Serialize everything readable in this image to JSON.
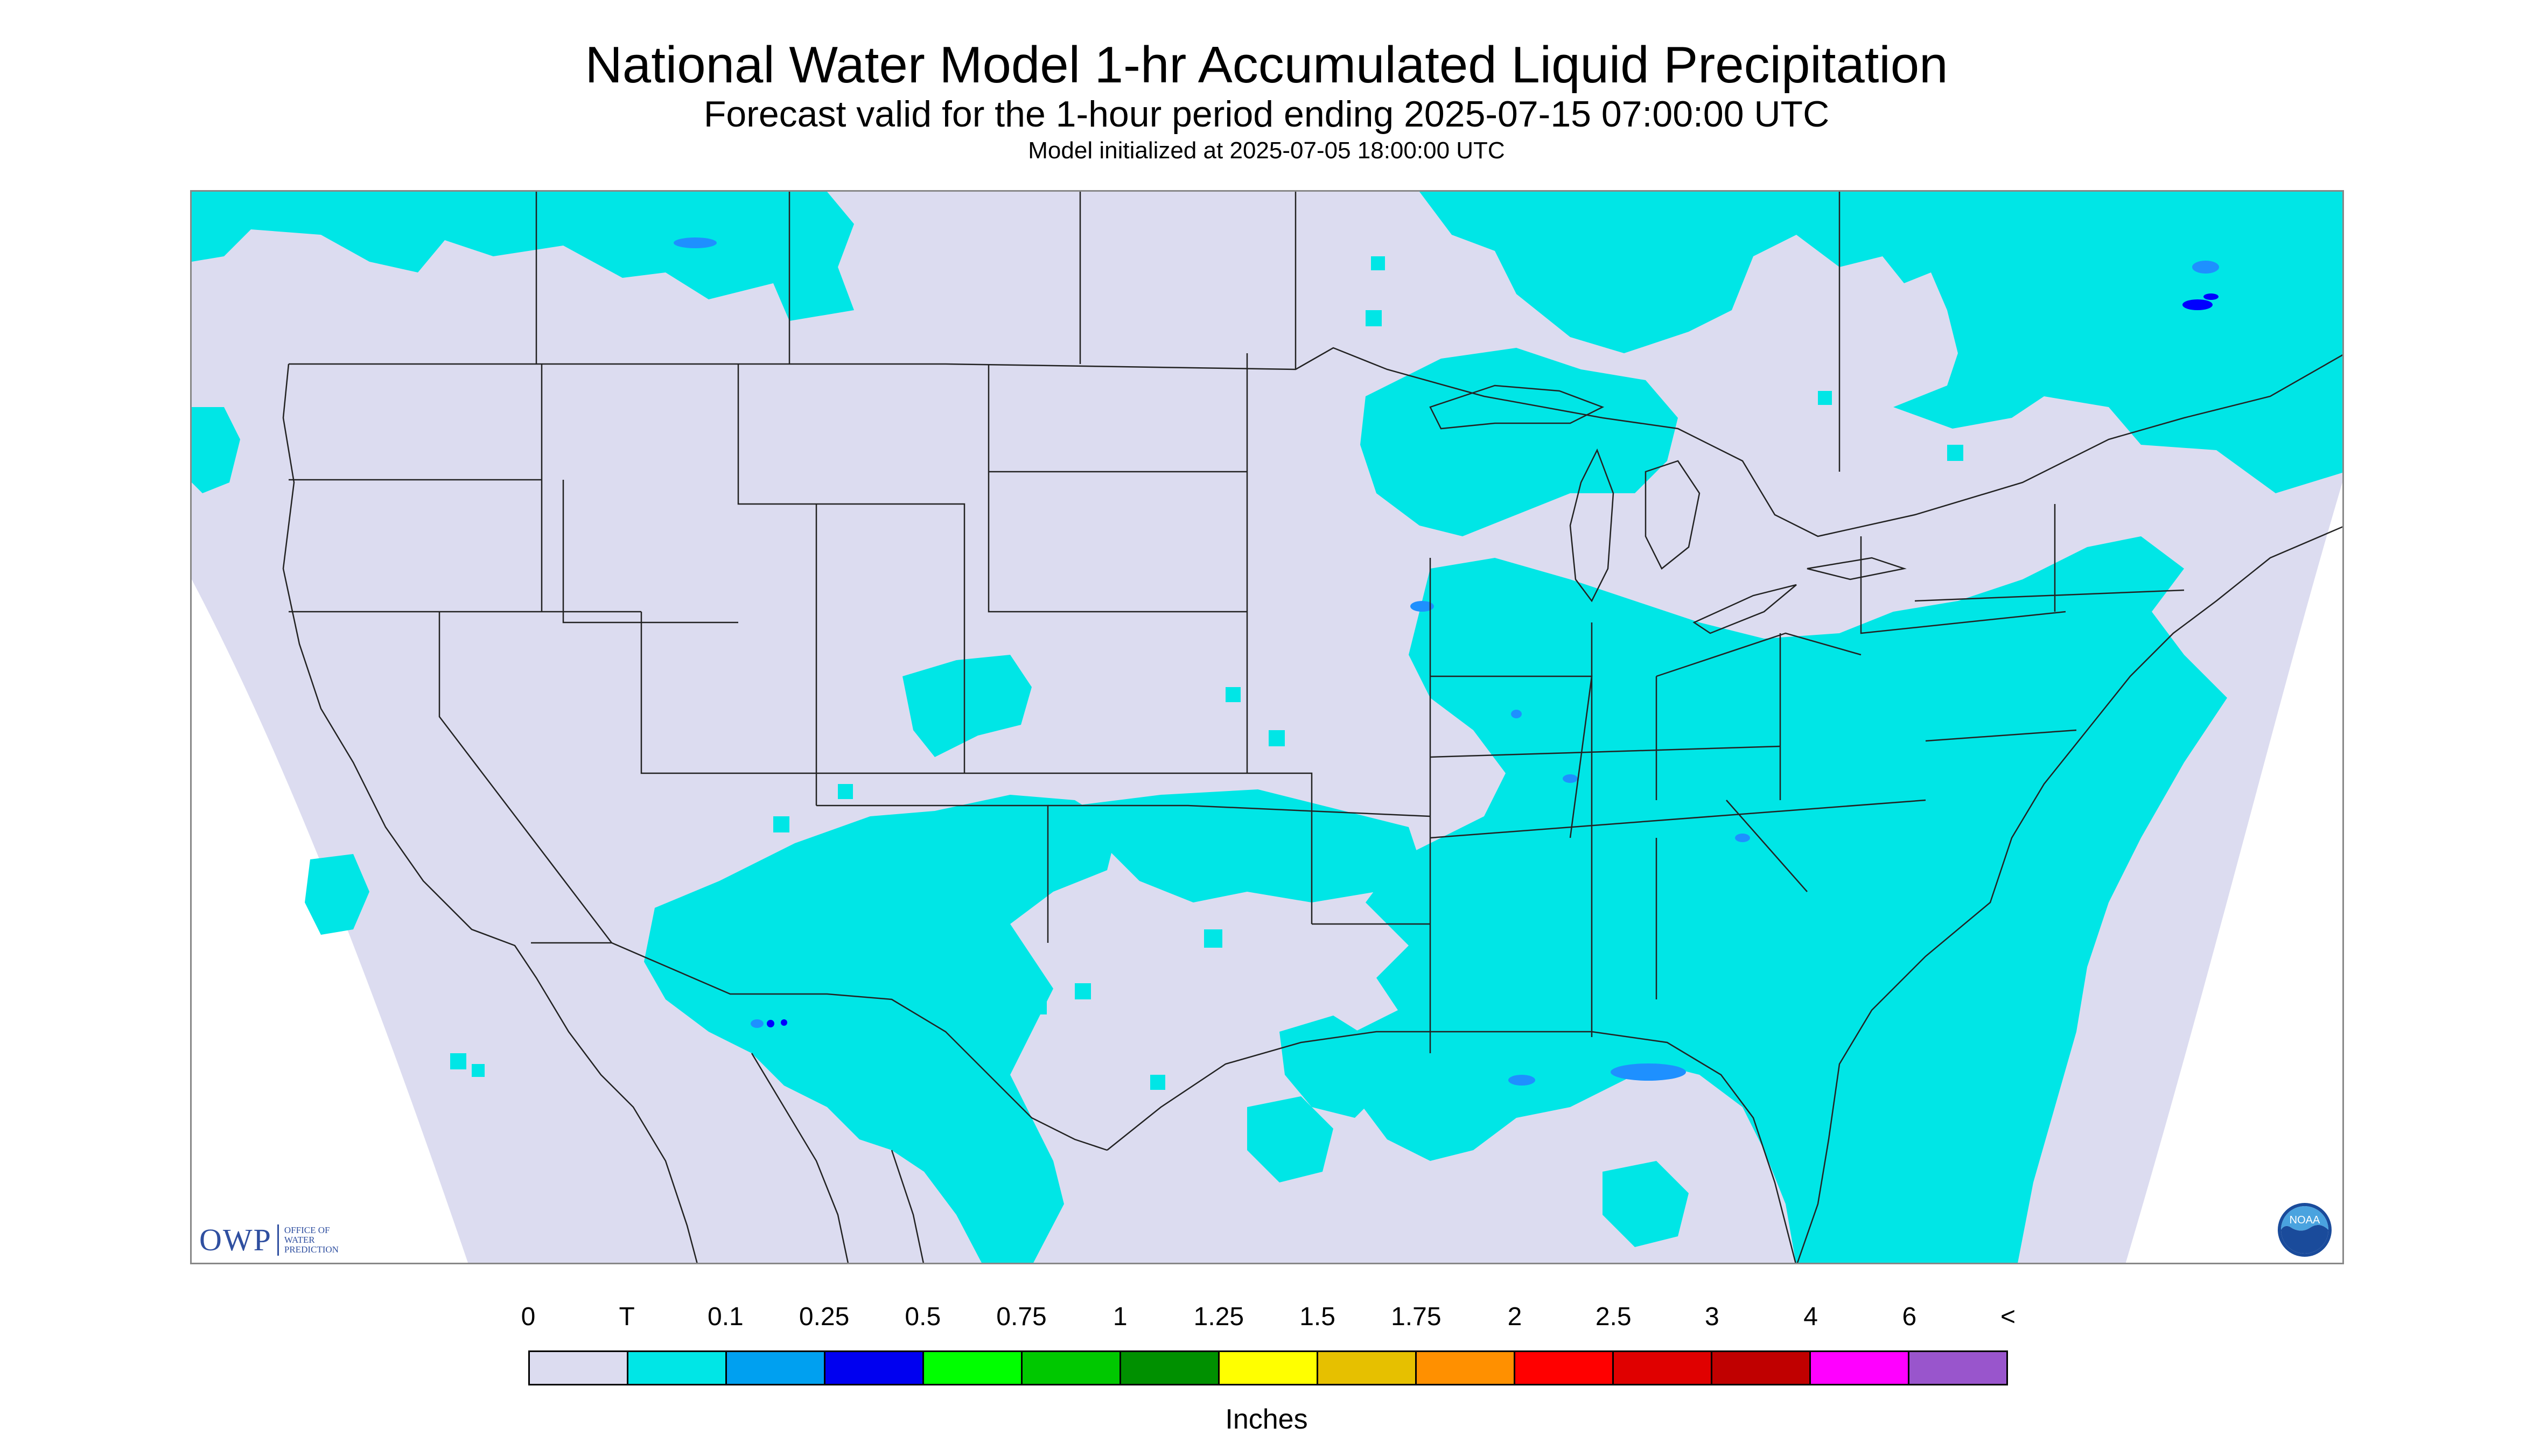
{
  "title": "National Water Model 1-hr Accumulated Liquid Precipitation",
  "subtitle": "Forecast valid for the 1-hour period ending 2025-07-15 07:00:00 UTC",
  "init_line": "Model initialized at 2025-07-05 18:00:00 UTC",
  "map": {
    "domain_fill": "#dcdcf0",
    "outside_fill": "#ffffff",
    "border_color": "#222222",
    "precip_trace_color": "#00e6e6",
    "precip_light_color": "#1e90ff",
    "precip_mid_color": "#0000ff",
    "features": [
      "US states",
      "Canadian provinces",
      "Mexico states",
      "Great Lakes",
      "coastlines"
    ]
  },
  "logos": {
    "owp_mark": "OWP",
    "owp_text": "Office of\nWater\nPrediction",
    "noaa_text": "NOAA"
  },
  "legend": {
    "labels": [
      "0",
      "T",
      "0.1",
      "0.25",
      "0.5",
      "0.75",
      "1",
      "1.25",
      "1.5",
      "1.75",
      "2",
      "2.5",
      "3",
      "4",
      "6",
      "<"
    ],
    "colors": [
      "#dcdcf0",
      "#00e6e6",
      "#00a0f0",
      "#0000f0",
      "#00ff00",
      "#00c800",
      "#009000",
      "#ffff00",
      "#e6c000",
      "#ff9000",
      "#ff0000",
      "#e00000",
      "#c00000",
      "#ff00ff",
      "#9955cc"
    ],
    "unit": "Inches"
  },
  "chart_data": {
    "type": "heatmap",
    "title": "National Water Model 1-hr Accumulated Liquid Precipitation",
    "subtitle": "Forecast valid for the 1-hour period ending 2025-07-15 07:00:00 UTC",
    "colorbar_label": "Inches",
    "bin_edges": [
      "0",
      "T",
      "0.1",
      "0.25",
      "0.5",
      "0.75",
      "1",
      "1.25",
      "1.5",
      "1.75",
      "2",
      "2.5",
      "3",
      "4",
      "6",
      "<"
    ],
    "bin_colors": [
      "#dcdcf0",
      "#00e6e6",
      "#00a0f0",
      "#0000f0",
      "#00ff00",
      "#00c800",
      "#009000",
      "#ffff00",
      "#e6c000",
      "#ff9000",
      "#ff0000",
      "#e00000",
      "#c00000",
      "#ff00ff",
      "#9955cc"
    ],
    "legend_position": "bottom"
  }
}
